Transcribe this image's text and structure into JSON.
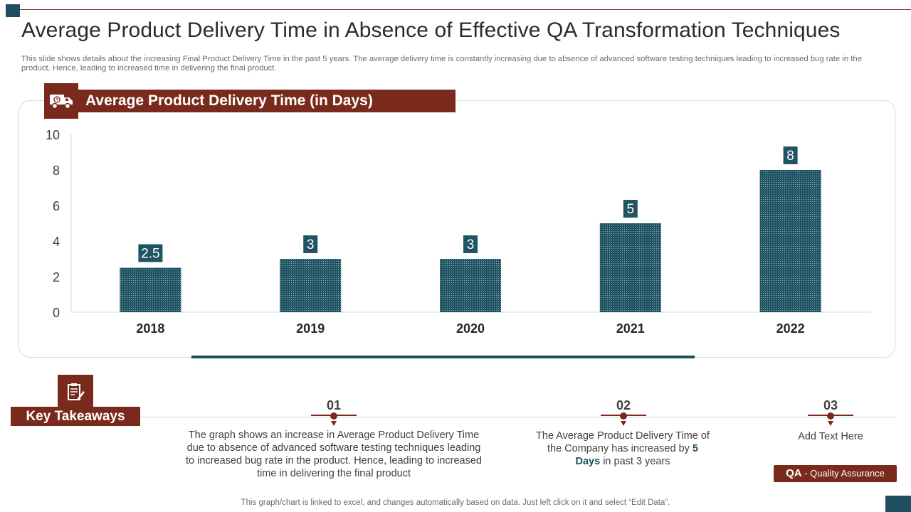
{
  "slide": {
    "title": "Average Product Delivery Time in Absence of Effective QA Transformation Techniques",
    "subtitle": "This slide shows details about the increasing Final Product Delivery Time in the past 5 years. The average delivery time is constantly increasing due to absence of advanced software testing techniques leading to increased bug rate in the product. Hence, leading to increased time in delivering the final product.",
    "footer": "This graph/chart is linked to excel,  and changes automatically based on data. Just left click on it and select “Edit Data”."
  },
  "chart_data": {
    "type": "bar",
    "title": "Average Product Delivery Time (in Days)",
    "categories": [
      "2018",
      "2019",
      "2020",
      "2021",
      "2022"
    ],
    "values": [
      2.5,
      3,
      3,
      5,
      8
    ],
    "value_labels": [
      "2.5",
      "3",
      "3",
      "5",
      "8"
    ],
    "ylim": [
      0,
      10
    ],
    "yticks": [
      0,
      2,
      4,
      6,
      8,
      10
    ],
    "xlabel": "",
    "ylabel": "",
    "grid": false,
    "bar_color": "#1f5563",
    "label_bg_color": "#1f5563"
  },
  "key_takeaways": {
    "label": "Key Takeaways",
    "items": [
      {
        "number": "01",
        "text": "The graph shows an increase in Average Product Delivery Time due to absence of advanced software testing techniques leading to increased bug rate in the product. Hence, leading to increased time in delivering the final product"
      },
      {
        "number": "02",
        "text_before": "The Average Product Delivery Time of the Company has increased by ",
        "text_bold": "5 Days",
        "text_after": " in past 3 years"
      },
      {
        "number": "03",
        "text": "Add Text Here"
      }
    ]
  },
  "qa_badge": {
    "abbr": "QA",
    "text": " - Quality Assurance"
  },
  "colors": {
    "accent": "#7a2a1d",
    "teal": "#1f4e5f"
  },
  "icons": {
    "chart_header": "delivery-truck-icon",
    "key_takeaways": "clipboard-pen-icon"
  }
}
